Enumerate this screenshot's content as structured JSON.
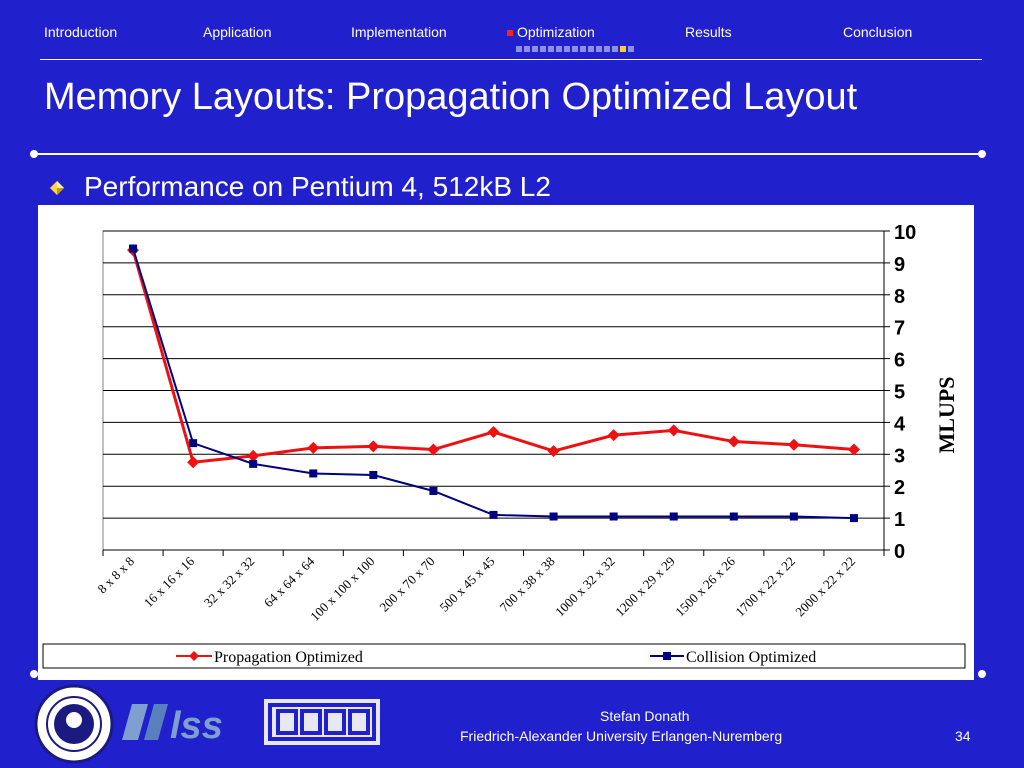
{
  "nav": {
    "items": [
      "Introduction",
      "Application",
      "Implementation",
      "Optimization",
      "Results",
      "Conclusion"
    ],
    "active_index": 3,
    "progress": {
      "total": 15,
      "current": 14
    }
  },
  "slide": {
    "title": "Memory Layouts: Propagation Optimized Layout",
    "bullet": "Performance on Pentium 4, 512kB L2"
  },
  "footer": {
    "author": "Stefan Donath",
    "affiliation": "Friedrich-Alexander University Erlangen-Nuremberg",
    "page": "34"
  },
  "colors": {
    "background": "#2020cc",
    "propagation": "#ee1111",
    "collision": "#000080",
    "active_marker": "#ff2020",
    "progress_current": "#ffcc33"
  },
  "chart_data": {
    "type": "line",
    "categories": [
      "8 x 8 x 8",
      "16 x 16 x 16",
      "32 x 32 x 32",
      "64 x 64 x 64",
      "100 x 100 x 100",
      "200 x 70 x 70",
      "500 x 45 x 45",
      "700 x 38 x 38",
      "1000 x 32 x 32",
      "1200 x 29 x 29",
      "1500 x 26 x 26",
      "1700 x 22 x 22",
      "2000 x 22 x 22"
    ],
    "series": [
      {
        "name": "Propagation Optimized",
        "values": [
          9.4,
          2.75,
          2.95,
          3.2,
          3.25,
          3.15,
          3.7,
          3.1,
          3.6,
          3.75,
          3.4,
          3.3,
          3.15
        ]
      },
      {
        "name": "Collision Optimized",
        "values": [
          9.45,
          3.35,
          2.7,
          2.4,
          2.35,
          1.85,
          1.1,
          1.05,
          1.05,
          1.05,
          1.05,
          1.05,
          1.0
        ]
      }
    ],
    "ylabel": "MLUPS",
    "ylim": [
      0,
      10
    ],
    "yticks": [
      "0",
      "1",
      "2",
      "3",
      "4",
      "5",
      "6",
      "7",
      "8",
      "9",
      "10"
    ],
    "grid": true,
    "legend_position": "bottom",
    "y_axis_side": "right"
  }
}
